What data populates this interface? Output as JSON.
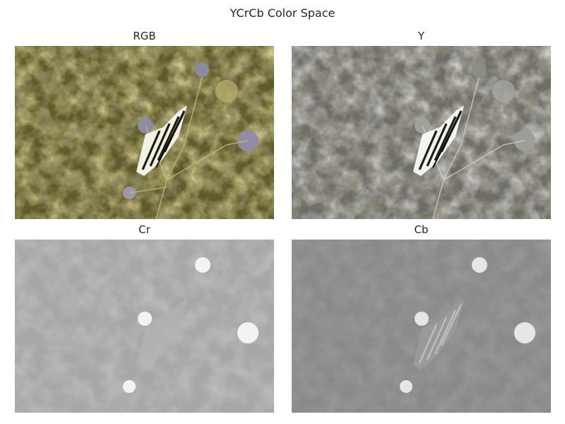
{
  "figure": {
    "title": "YCrCb Color Space"
  },
  "panels": [
    {
      "title": "RGB"
    },
    {
      "title": "Y"
    },
    {
      "title": "Cr"
    },
    {
      "title": "Cb"
    }
  ]
}
